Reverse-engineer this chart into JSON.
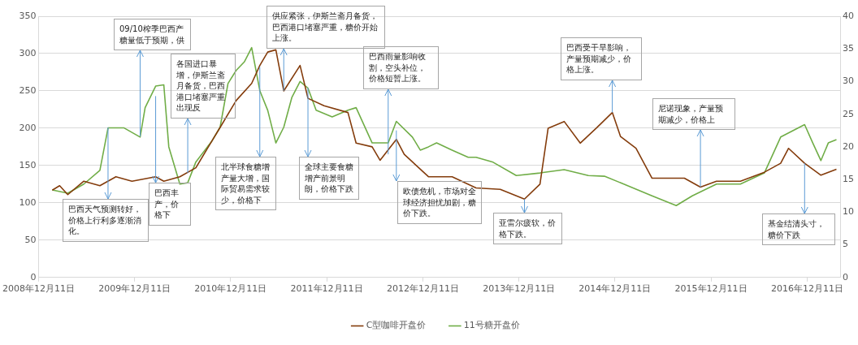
{
  "chart_data": {
    "type": "line",
    "series": [
      {
        "name": "C型咖啡开盘价",
        "color": "#843c0c",
        "axis": "y",
        "x": [
          "2009-02",
          "2009-03",
          "2009-04",
          "2009-06",
          "2009-08",
          "2009-10",
          "2009-12",
          "2010-03",
          "2010-04",
          "2010-06",
          "2010-08",
          "2010-10",
          "2010-11",
          "2011-01",
          "2011-03",
          "2011-04",
          "2011-05",
          "2011-06",
          "2011-07",
          "2011-09",
          "2011-10",
          "2011-12",
          "2012-03",
          "2012-04",
          "2012-06",
          "2012-07",
          "2012-09",
          "2012-10",
          "2013-01",
          "2013-04",
          "2013-07",
          "2013-10",
          "2014-01",
          "2014-03",
          "2014-04",
          "2014-06",
          "2014-08",
          "2014-10",
          "2014-12",
          "2015-01",
          "2015-03",
          "2015-05",
          "2015-09",
          "2015-11",
          "2016-01",
          "2016-04",
          "2016-07",
          "2016-09",
          "2016-10",
          "2016-12",
          "2017-02",
          "2017-04"
        ],
        "values": [
          117,
          123,
          111,
          129,
          123,
          135,
          129,
          135,
          129,
          135,
          147,
          183,
          201,
          237,
          260,
          284,
          302,
          305,
          250,
          284,
          240,
          230,
          221,
          180,
          175,
          157,
          185,
          165,
          135,
          135,
          120,
          118,
          105,
          125,
          200,
          209,
          180,
          200,
          221,
          189,
          173,
          133,
          133,
          121,
          129,
          129,
          141,
          153,
          173,
          153,
          137,
          145
        ]
      },
      {
        "name": "11号糖开盘价",
        "color": "#70ad47",
        "axis": "y2",
        "x": [
          "2009-02",
          "2009-04",
          "2009-06",
          "2009-08",
          "2009-09",
          "2009-11",
          "2010-01",
          "2010-01-20",
          "2010-03",
          "2010-04",
          "2010-04-20",
          "2010-06",
          "2010-07",
          "2010-08",
          "2010-10",
          "2010-11",
          "2010-12",
          "2011-01",
          "2011-02",
          "2011-03",
          "2011-04",
          "2011-05",
          "2011-06",
          "2011-07",
          "2011-08",
          "2011-09",
          "2011-10",
          "2011-11",
          "2012-01",
          "2012-03",
          "2012-04",
          "2012-06",
          "2012-08",
          "2012-09",
          "2012-11",
          "2012-12",
          "2013-01",
          "2013-02",
          "2013-04",
          "2013-06",
          "2013-07",
          "2013-09",
          "2013-12",
          "2014-03",
          "2014-06",
          "2014-09",
          "2014-11",
          "2015-02",
          "2015-05",
          "2015-08",
          "2015-10",
          "2016-01",
          "2016-04",
          "2016-07",
          "2016-09",
          "2016-12",
          "2017-01",
          "2017-02",
          "2017-03",
          "2017-04"
        ],
        "values": [
          13.4,
          12.9,
          14.3,
          16.4,
          22.9,
          22.9,
          21.5,
          26,
          29.3,
          29.5,
          20,
          14.3,
          14.5,
          17.7,
          20.9,
          23,
          29.7,
          31.7,
          33,
          35.2,
          28.6,
          25.6,
          20.6,
          23,
          27.6,
          30,
          29,
          25.6,
          24.6,
          25.6,
          26,
          20.6,
          20.6,
          23.9,
          21.5,
          19.5,
          20,
          20.6,
          19.5,
          18.4,
          18.4,
          17.7,
          15.6,
          16,
          16.5,
          15.6,
          15.5,
          14,
          12.5,
          11,
          12.5,
          14.3,
          14.3,
          16,
          21.5,
          23.4,
          20.6,
          17.9,
          20.6,
          21.1
        ]
      }
    ],
    "xlim": [
      "2008-12-11",
      "2017-04-15"
    ],
    "xticks": [
      {
        "value": "2008-12-11",
        "label": "2008年12月11日"
      },
      {
        "value": "2009-12-11",
        "label": "2009年12月11日"
      },
      {
        "value": "2010-12-11",
        "label": "2010年12月11日"
      },
      {
        "value": "2011-12-11",
        "label": "2011年12月11日"
      },
      {
        "value": "2012-12-11",
        "label": "2012年12月11日"
      },
      {
        "value": "2013-12-11",
        "label": "2013年12月11日"
      },
      {
        "value": "2014-12-11",
        "label": "2014年12月11日"
      },
      {
        "value": "2015-12-11",
        "label": "2015年12月11日"
      },
      {
        "value": "2016-12-11",
        "label": "2016年12月11日"
      }
    ],
    "ylim": [
      0,
      350
    ],
    "yticks": [
      0,
      50,
      100,
      150,
      200,
      250,
      300,
      350
    ],
    "y2lim": [
      0,
      40
    ],
    "y2ticks": [
      0,
      5,
      10,
      15,
      20,
      25,
      30,
      35,
      40
    ],
    "grid": "y",
    "legend": "bottom",
    "annotations": [
      {
        "text": "09/10榨季巴西产糖量低于预期，供",
        "x": "2010-01",
        "y": 189
      },
      {
        "text": "各国进口暴增，伊斯兰斋月备货，巴西港口堵塞严重出现反",
        "x": "2010-07",
        "y": 140
      },
      {
        "text": "供应紧张，伊斯兰斋月备货，巴西港口堵塞严重，糖价开始上涨。",
        "x": "2011-07",
        "y": 250
      },
      {
        "text": "巴西雨量影响收割，空头补位，价格短暂上涨。",
        "x": "2012-08",
        "y": 165
      },
      {
        "text": "巴西受干旱影响，产量预期减少，价格上涨。",
        "x": "2014-12",
        "y": 221
      },
      {
        "text": "尼诺现象，产量预期减少，价格上",
        "x": "2015-11",
        "y": 121
      },
      {
        "text": "巴西天气预测转好，价格上行利多逐渐消化。",
        "x": "2009-09",
        "y": 201
      },
      {
        "text": "巴西丰产，价格下",
        "x": "2010-03",
        "y": 243
      },
      {
        "text": "北半球食糖增产量大增，国际贸易需求较少，价格下",
        "x": "2011-04",
        "y": 282
      },
      {
        "text": "全球主要食糖增产前景明朗，价格下跌",
        "x": "2011-10",
        "y": 254
      },
      {
        "text": "欧债危机，市场对全球经济担忧加剧，糖价下跌。",
        "x": "2012-09",
        "y": 197
      },
      {
        "text": "亚雷尔疲软，价格下跌。",
        "x": "2014-01",
        "y": 105
      },
      {
        "text": "基金结清头寸，糖价下跌",
        "x": "2016-12",
        "y": 153
      }
    ]
  }
}
